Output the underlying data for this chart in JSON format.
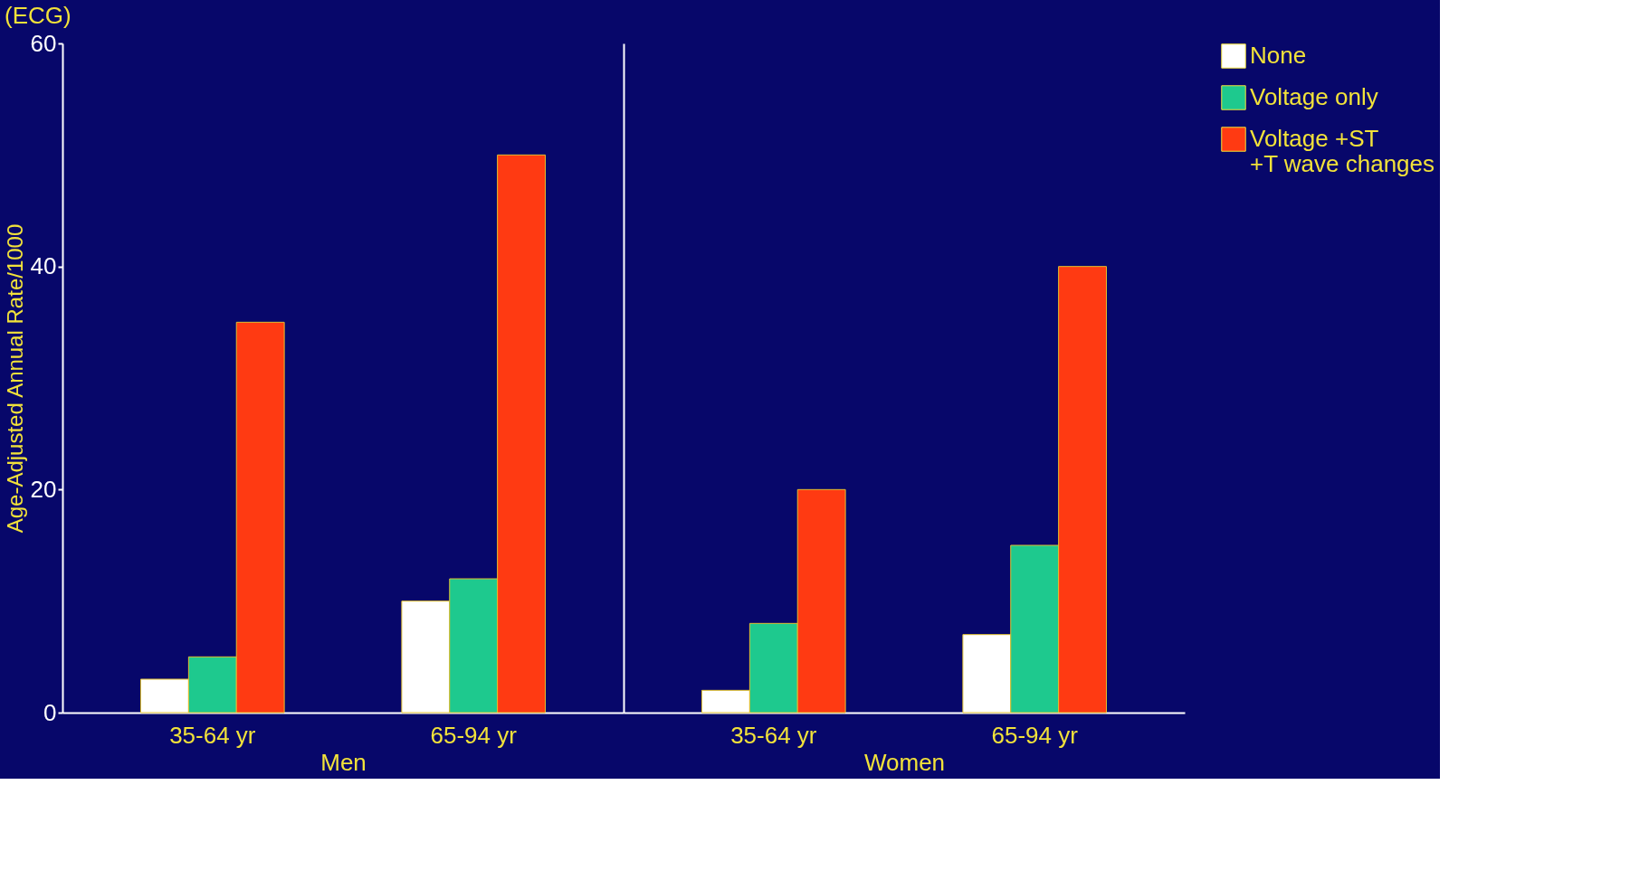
{
  "chart_data": [
    {
      "type": "bar",
      "title": "(ECG)",
      "ylabel": "Age-Adjusted Annual Rate/1000",
      "xlabel": "Men",
      "categories": [
        "35-64 yr",
        "65-94 yr"
      ],
      "ylim": [
        0,
        60
      ],
      "yticks": [
        0,
        20,
        40,
        60
      ],
      "grid": false,
      "legend": false,
      "series": [
        {
          "color": "#ffffff",
          "values": [
            3,
            10
          ]
        },
        {
          "color": "#1ec98e",
          "values": [
            5,
            12
          ]
        },
        {
          "color": "#ff3a12",
          "values": [
            35,
            50
          ]
        }
      ]
    },
    {
      "type": "bar",
      "xlabel": "Women",
      "categories": [
        "35-64 yr",
        "65-94 yr"
      ],
      "ylim": [
        0,
        60
      ],
      "yticks": [
        0,
        20,
        40,
        60
      ],
      "grid": false,
      "legend": "top right",
      "tick_labels": "x",
      "series": [
        {
          "name": "None",
          "color": "#ffffff",
          "values": [
            2,
            7
          ]
        },
        {
          "name": "Voltage only",
          "color": "#1ec98e",
          "values": [
            8,
            15
          ]
        },
        {
          "name": "Voltage +ST\n+T wave changes",
          "color": "#ff3a12",
          "values": [
            20,
            40
          ]
        }
      ]
    }
  ]
}
